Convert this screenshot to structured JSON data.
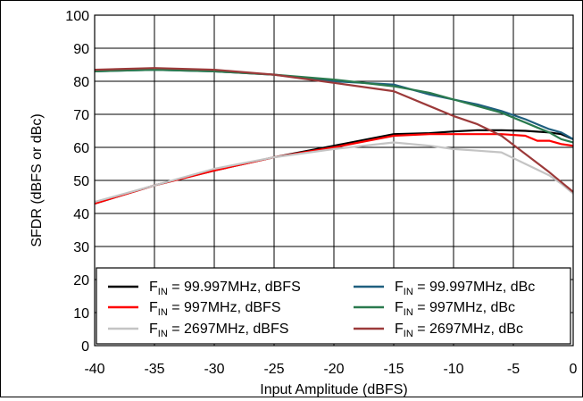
{
  "chart_data": {
    "type": "line",
    "title": "",
    "xlabel": "Input Amplitude (dBFS)",
    "ylabel": "SFDR (dBFS or dBc)",
    "xlim": [
      -40,
      0
    ],
    "ylim": [
      0,
      100
    ],
    "xticks": [
      -40,
      -35,
      -30,
      -25,
      -20,
      -15,
      -10,
      -5,
      0
    ],
    "yticks": [
      0,
      10,
      20,
      30,
      40,
      50,
      60,
      70,
      80,
      90,
      100
    ],
    "x_tick_labels": [
      "-40",
      "-35",
      "-30",
      "-25",
      "-20",
      "-15",
      "-10",
      "-5",
      "0"
    ],
    "y_tick_labels": [
      "0",
      "10",
      "20",
      "30",
      "40",
      "50",
      "60",
      "70",
      "80",
      "90",
      "100"
    ],
    "grid": true,
    "legend_position": "bottom",
    "series": [
      {
        "legend_sym": "F",
        "legend_sub": "IN",
        "legend_rest": " = 99.997MHz, dBFS",
        "color": "#000000",
        "x": [
          -40,
          -35,
          -30,
          -25,
          -20,
          -15,
          -12,
          -10,
          -8,
          -6,
          -4,
          -2,
          -1,
          0
        ],
        "y": [
          43,
          48.5,
          53,
          57,
          60.5,
          64,
          64.3,
          64.8,
          65.2,
          65.2,
          65,
          64.5,
          64,
          62.5
        ]
      },
      {
        "legend_sym": "F",
        "legend_sub": "IN",
        "legend_rest": " = 99.997MHz, dBc",
        "color": "#1f5f7f",
        "x": [
          -40,
          -35,
          -30,
          -25,
          -20,
          -15,
          -12,
          -10,
          -8,
          -6,
          -4,
          -3,
          -2,
          -1,
          0
        ],
        "y": [
          83,
          83.5,
          83,
          82,
          80,
          79,
          76,
          74.5,
          73,
          71,
          68.5,
          67,
          65.5,
          64.5,
          62.5
        ]
      },
      {
        "legend_sym": "F",
        "legend_sub": "IN",
        "legend_rest": " = 997MHz, dBFS",
        "color": "#ff0000",
        "x": [
          -40,
          -35,
          -30,
          -25,
          -20,
          -15,
          -12,
          -10,
          -8,
          -6,
          -4,
          -3,
          -2,
          -1,
          0
        ],
        "y": [
          43,
          48.5,
          53,
          57,
          60,
          63.5,
          64,
          64,
          64,
          64,
          63.5,
          62,
          62,
          61,
          60.5
        ]
      },
      {
        "legend_sym": "F",
        "legend_sub": "IN",
        "legend_rest": " = 997MHz, dBc",
        "color": "#2a7a4e",
        "x": [
          -40,
          -35,
          -30,
          -25,
          -20,
          -15,
          -12,
          -10,
          -8,
          -6,
          -4,
          -3,
          -2,
          -1,
          0
        ],
        "y": [
          83,
          83.5,
          83,
          82,
          80.5,
          78.5,
          76.5,
          74.5,
          72.5,
          70.5,
          67.5,
          66,
          64.5,
          62.5,
          61.5
        ]
      },
      {
        "legend_sym": "F",
        "legend_sub": "IN",
        "legend_rest": " = 2697MHz, dBFS",
        "color": "#c4c4c4",
        "x": [
          -40,
          -35,
          -30,
          -25,
          -20,
          -15,
          -12,
          -10,
          -8,
          -6,
          -4,
          -2,
          -1,
          0
        ],
        "y": [
          43.5,
          48.5,
          53.5,
          57,
          59.5,
          61.5,
          60.5,
          59.5,
          59,
          58.5,
          55,
          51.5,
          49,
          46
        ]
      },
      {
        "legend_sym": "F",
        "legend_sub": "IN",
        "legend_rest": " = 2697MHz, dBc",
        "color": "#9c3a3a",
        "x": [
          -40,
          -35,
          -30,
          -25,
          -20,
          -15,
          -12,
          -10,
          -8,
          -6,
          -4,
          -2,
          -1,
          0
        ],
        "y": [
          83.5,
          84,
          83.5,
          82,
          79.5,
          77,
          72.5,
          69.5,
          67,
          63.5,
          58,
          52.5,
          49.5,
          46.5
        ]
      }
    ]
  }
}
